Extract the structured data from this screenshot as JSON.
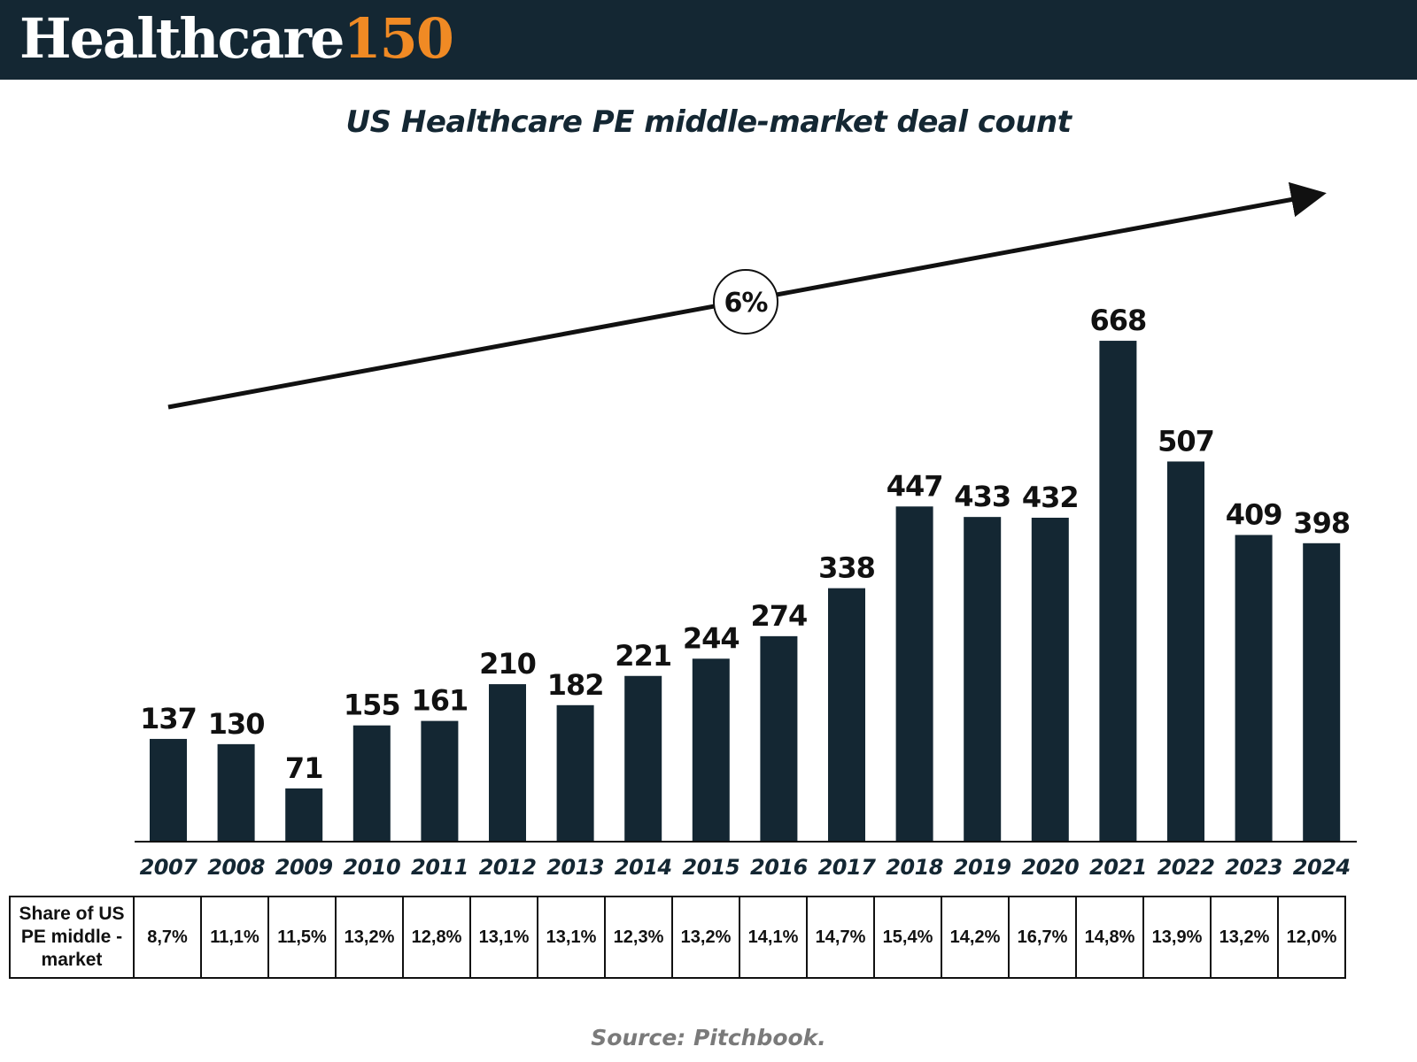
{
  "header": {
    "logo_word": "Healthcare",
    "logo_number": "150"
  },
  "chart_data": {
    "type": "bar",
    "title": "US Healthcare PE middle-market deal count",
    "categories": [
      "2007",
      "2008",
      "2009",
      "2010",
      "2011",
      "2012",
      "2013",
      "2014",
      "2015",
      "2016",
      "2017",
      "2018",
      "2019",
      "2020",
      "2021",
      "2022",
      "2023",
      "2024"
    ],
    "values": [
      137,
      130,
      71,
      155,
      161,
      210,
      182,
      221,
      244,
      274,
      338,
      447,
      433,
      432,
      668,
      507,
      409,
      398
    ],
    "ylim": [
      0,
      720
    ],
    "grid": false,
    "legend": "none",
    "annotation": "6%",
    "bar_color": "#142733"
  },
  "table": {
    "row_header": "Share of US PE middle - market",
    "values": [
      "8,7%",
      "11,1%",
      "11,5%",
      "13,2%",
      "12,8%",
      "13,1%",
      "13,1%",
      "12,3%",
      "13,2%",
      "14,1%",
      "14,7%",
      "15,4%",
      "14,2%",
      "16,7%",
      "14,8%",
      "13,9%",
      "13,2%",
      "12,0%"
    ]
  },
  "footer": {
    "source": "Source: Pitchbook."
  },
  "colors": {
    "header_bg": "#142733",
    "logo_accent": "#f08a24",
    "bar": "#142733"
  }
}
